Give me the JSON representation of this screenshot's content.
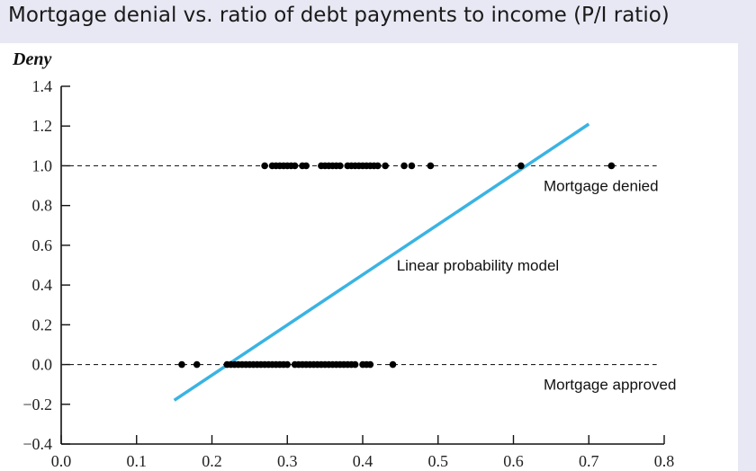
{
  "slide": {
    "title": "Mortgage denial vs. ratio of debt payments to income (P/I ratio)"
  },
  "chart_data": {
    "type": "scatter",
    "title": "Mortgage denial vs. ratio of debt payments to income (P/I ratio)",
    "ylabel": "Deny",
    "xlabel": "",
    "xlim": [
      0.0,
      0.8
    ],
    "ylim": [
      -0.4,
      1.4
    ],
    "x_ticks": [
      "0.0",
      "0.1",
      "0.2",
      "0.3",
      "0.4",
      "0.5",
      "0.6",
      "0.7",
      "0.8"
    ],
    "y_ticks": [
      "1.4",
      "1.2",
      "1.0",
      "0.8",
      "0.6",
      "0.4",
      "0.2",
      "0.0",
      "−0.2",
      "−0.4"
    ],
    "grid": false,
    "reference_lines": [
      {
        "y": 1.0,
        "style": "dashed",
        "x_from": 0.0,
        "x_to": 0.79
      },
      {
        "y": 0.0,
        "style": "dashed",
        "x_from": 0.0,
        "x_to": 0.79
      }
    ],
    "series": [
      {
        "type": "scatter",
        "points_denied": [
          [
            0.27,
            1
          ],
          [
            0.28,
            1
          ],
          [
            0.285,
            1
          ],
          [
            0.29,
            1
          ],
          [
            0.295,
            1
          ],
          [
            0.3,
            1
          ],
          [
            0.305,
            1
          ],
          [
            0.31,
            1
          ],
          [
            0.32,
            1
          ],
          [
            0.325,
            1
          ],
          [
            0.345,
            1
          ],
          [
            0.35,
            1
          ],
          [
            0.355,
            1
          ],
          [
            0.36,
            1
          ],
          [
            0.365,
            1
          ],
          [
            0.37,
            1
          ],
          [
            0.38,
            1
          ],
          [
            0.385,
            1
          ],
          [
            0.39,
            1
          ],
          [
            0.395,
            1
          ],
          [
            0.4,
            1
          ],
          [
            0.405,
            1
          ],
          [
            0.41,
            1
          ],
          [
            0.415,
            1
          ],
          [
            0.42,
            1
          ],
          [
            0.43,
            1
          ],
          [
            0.455,
            1
          ],
          [
            0.465,
            1
          ],
          [
            0.49,
            1
          ],
          [
            0.61,
            1
          ],
          [
            0.73,
            1
          ]
        ],
        "points_approved": [
          [
            0.16,
            0
          ],
          [
            0.18,
            0
          ],
          [
            0.22,
            0
          ],
          [
            0.225,
            0
          ],
          [
            0.23,
            0
          ],
          [
            0.235,
            0
          ],
          [
            0.24,
            0
          ],
          [
            0.245,
            0
          ],
          [
            0.25,
            0
          ],
          [
            0.255,
            0
          ],
          [
            0.26,
            0
          ],
          [
            0.265,
            0
          ],
          [
            0.27,
            0
          ],
          [
            0.275,
            0
          ],
          [
            0.28,
            0
          ],
          [
            0.285,
            0
          ],
          [
            0.29,
            0
          ],
          [
            0.295,
            0
          ],
          [
            0.3,
            0
          ],
          [
            0.31,
            0
          ],
          [
            0.315,
            0
          ],
          [
            0.32,
            0
          ],
          [
            0.325,
            0
          ],
          [
            0.33,
            0
          ],
          [
            0.335,
            0
          ],
          [
            0.34,
            0
          ],
          [
            0.345,
            0
          ],
          [
            0.35,
            0
          ],
          [
            0.355,
            0
          ],
          [
            0.36,
            0
          ],
          [
            0.365,
            0
          ],
          [
            0.37,
            0
          ],
          [
            0.375,
            0
          ],
          [
            0.38,
            0
          ],
          [
            0.385,
            0
          ],
          [
            0.39,
            0
          ],
          [
            0.4,
            0
          ],
          [
            0.405,
            0
          ],
          [
            0.41,
            0
          ],
          [
            0.44,
            0
          ]
        ]
      },
      {
        "type": "line",
        "name": "Linear probability model",
        "color": "#3ab3e3",
        "x": [
          0.15,
          0.7
        ],
        "y": [
          -0.18,
          1.21
        ]
      }
    ],
    "annotations": [
      {
        "text": "Mortgage denied",
        "x": 0.64,
        "y": 0.9
      },
      {
        "text": "Linear probability model",
        "x": 0.445,
        "y": 0.5
      },
      {
        "text": "Mortgage approved",
        "x": 0.64,
        "y": -0.1
      }
    ]
  }
}
